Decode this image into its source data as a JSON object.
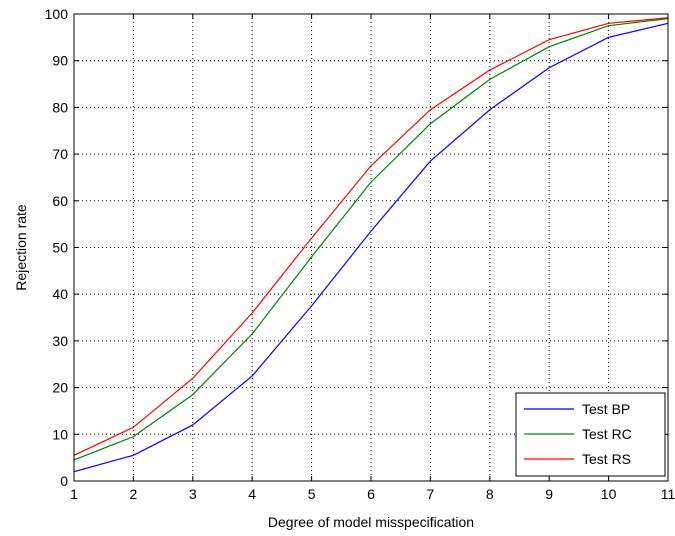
{
  "chart_data": {
    "type": "line",
    "title": "",
    "xlabel": "Degree of model misspecification",
    "ylabel": "Rejection rate",
    "x": [
      1,
      2,
      3,
      4,
      5,
      6,
      7,
      8,
      9,
      10,
      11
    ],
    "xlim": [
      1,
      11
    ],
    "ylim": [
      0,
      100
    ],
    "xticks": [
      1,
      2,
      3,
      4,
      5,
      6,
      7,
      8,
      9,
      10,
      11
    ],
    "yticks": [
      0,
      10,
      20,
      30,
      40,
      50,
      60,
      70,
      80,
      90,
      100
    ],
    "grid": true,
    "legend_position": "bottom-right",
    "series": [
      {
        "name": "Test BP",
        "color": "#0000ff",
        "values": [
          2.0,
          5.5,
          12.0,
          22.5,
          37.5,
          53.5,
          68.5,
          79.5,
          88.5,
          95.0,
          98.0
        ]
      },
      {
        "name": "Test RC",
        "color": "#008000",
        "values": [
          4.5,
          9.5,
          18.5,
          31.5,
          48.0,
          64.0,
          76.5,
          86.0,
          93.0,
          97.5,
          99.0
        ]
      },
      {
        "name": "Test RS",
        "color": "#ff0000",
        "values": [
          5.5,
          11.5,
          22.0,
          36.0,
          52.0,
          67.5,
          79.5,
          88.0,
          94.5,
          98.0,
          99.2
        ]
      }
    ]
  }
}
